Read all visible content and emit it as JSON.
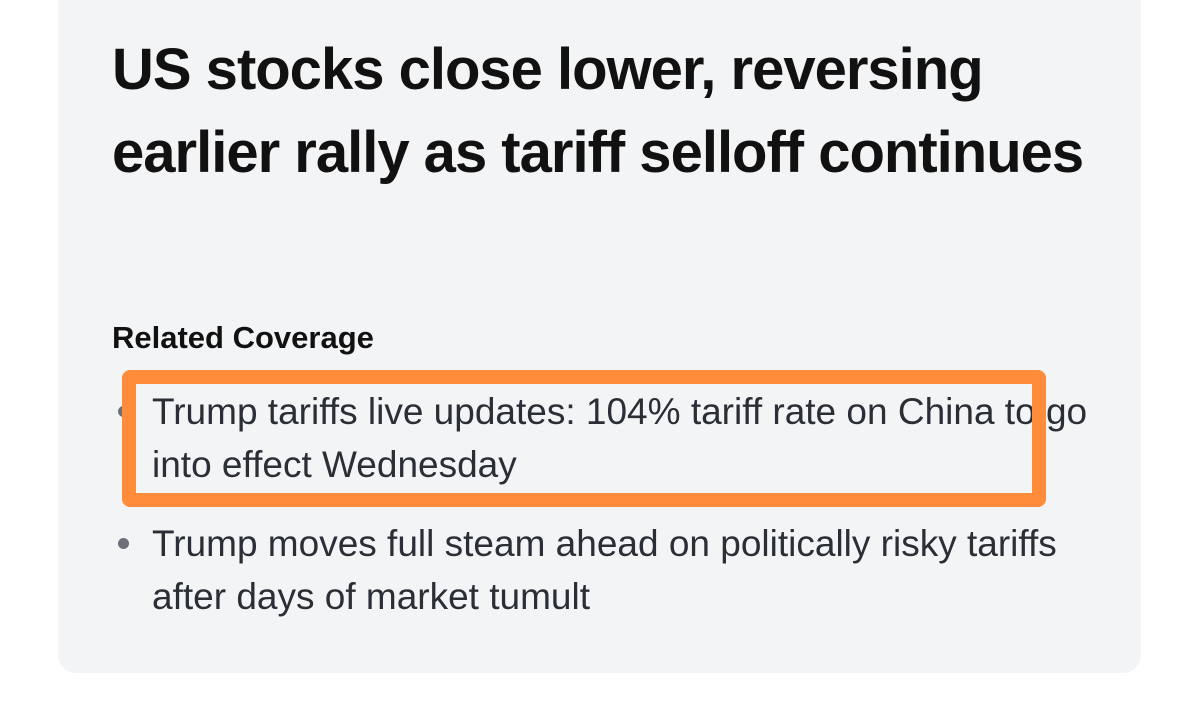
{
  "header": {
    "title": "US stocks close lower, reversing earlier rally as tariff selloff continues"
  },
  "related": {
    "heading": "Related Coverage",
    "items": [
      "Trump tariffs live updates: 104% tariff rate on China to go into effect Wednesday",
      "Trump moves full steam ahead on politically risky tariffs after days of market tumult"
    ]
  }
}
